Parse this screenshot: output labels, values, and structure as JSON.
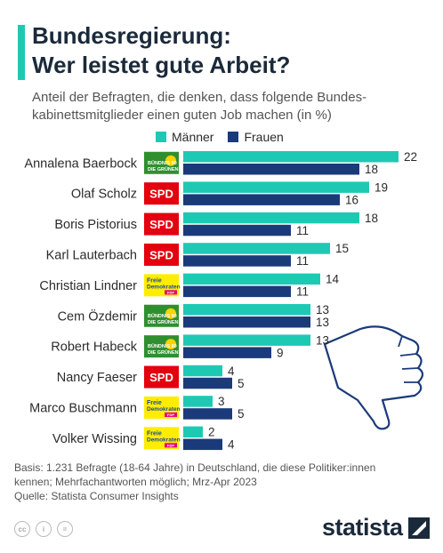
{
  "title_line1": "Bundesregierung:",
  "title_line2": "Wer leistet gute Arbeit?",
  "subtitle_line1": "Anteil der Befragten, die denken, dass folgende Bundes-",
  "subtitle_line2": "kabinettsmitglieder einen guten Job machen (in %)",
  "colors": {
    "maenner": "#1ec9b4",
    "frauen": "#1b3a7a",
    "accent": "#1ec9b4"
  },
  "party_badges": {
    "gruene": {
      "text_line1": "BÜNDNIS 90",
      "text_line2": "DIE GRÜNEN",
      "bg": "#2f8f2f",
      "fg": "#ffffff"
    },
    "spd": {
      "text": "SPD",
      "bg": "#e3000f",
      "fg": "#ffffff"
    },
    "fdp": {
      "text_line1": "Freie",
      "text_line2": "Demokraten",
      "text_line3": "FDP",
      "bg": "#ffed00",
      "fg": "#1a4a9a",
      "accent": "#e5007d"
    }
  },
  "chart_data": {
    "type": "bar",
    "orientation": "horizontal",
    "categories": [
      "Annalena Baerbock",
      "Olaf Scholz",
      "Boris Pistorius",
      "Karl Lauterbach",
      "Christian Lindner",
      "Cem Özdemir",
      "Robert Habeck",
      "Nancy Faeser",
      "Marco Buschmann",
      "Volker Wissing"
    ],
    "parties": [
      "gruene",
      "spd",
      "spd",
      "spd",
      "fdp",
      "gruene",
      "gruene",
      "spd",
      "fdp",
      "fdp"
    ],
    "series": [
      {
        "name": "Männer",
        "values": [
          22,
          19,
          18,
          15,
          14,
          13,
          13,
          4,
          3,
          2
        ]
      },
      {
        "name": "Frauen",
        "values": [
          18,
          16,
          11,
          11,
          11,
          13,
          9,
          5,
          5,
          4
        ]
      }
    ],
    "xlim": [
      0,
      22
    ],
    "legend_position": "top",
    "grid": false,
    "data_labels": true
  },
  "footer": {
    "line1": "Basis: 1.231 Befragte (18-64 Jahre) in Deutschland, die diese Politiker:innen",
    "line2": "kennen; Mehrfachantworten möglich; Mrz-Apr 2023",
    "line3": "Quelle: Statista Consumer Insights"
  },
  "brand": {
    "name": "statista"
  }
}
